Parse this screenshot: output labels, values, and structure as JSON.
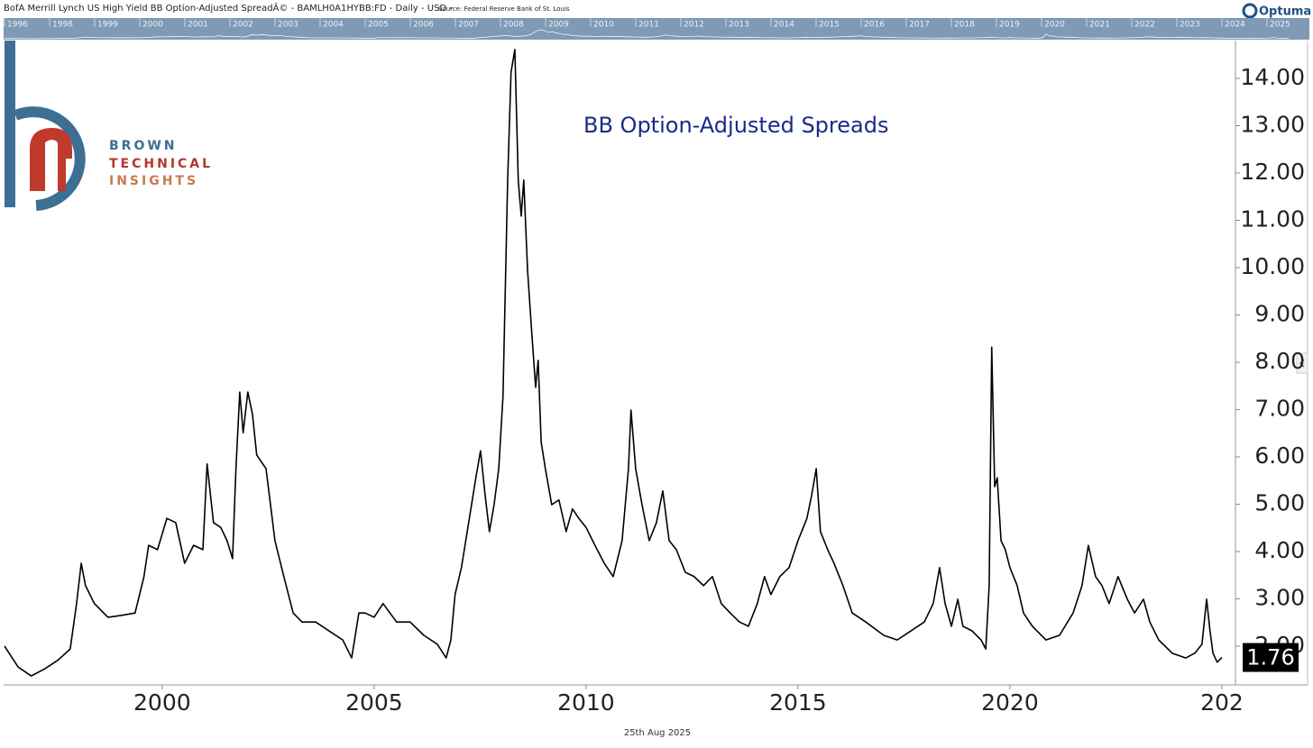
{
  "header": {
    "title": "BofA Merrill Lynch US High Yield BB Option-Adjusted SpreadÂ© - BAMLH0A1HYBB:FD - Daily - USD -",
    "source": "Source: Federal Reserve Bank of St. Louis",
    "brand": "Optuma"
  },
  "navigator": {
    "years": [
      "1996",
      "1998",
      "1999",
      "2000",
      "2001",
      "2002",
      "2003",
      "2004",
      "2005",
      "2006",
      "2007",
      "2008",
      "2009",
      "2010",
      "2011",
      "2012",
      "2013",
      "2014",
      "2015",
      "2016",
      "2017",
      "2018",
      "2019",
      "2020",
      "2021",
      "2022",
      "2023",
      "2024",
      "2025"
    ]
  },
  "logo": {
    "line1": "BROWN",
    "line2": "TECHNICAL",
    "line3": "INSIGHTS"
  },
  "footer": {
    "date": "25th Aug 2025"
  },
  "chart_data": {
    "type": "line",
    "annotation": "BB Option-Adjusted Spreads",
    "x": [
      1996.28,
      1996.6,
      1996.91,
      1997.23,
      1997.55,
      1997.83,
      1997.98,
      1998.09,
      1998.19,
      1998.4,
      1998.72,
      1999.04,
      1999.36,
      1999.57,
      1999.68,
      1999.89,
      2000.11,
      2000.32,
      2000.53,
      2000.74,
      2000.96,
      2001.06,
      2001.21,
      2001.38,
      2001.53,
      2001.66,
      2001.74,
      2001.83,
      2001.91,
      2002.02,
      2002.13,
      2002.23,
      2002.45,
      2002.66,
      2002.87,
      2003.09,
      2003.3,
      2003.62,
      2003.94,
      2004.26,
      2004.47,
      2004.64,
      2004.79,
      2005.0,
      2005.21,
      2005.53,
      2005.85,
      2006.17,
      2006.49,
      2006.7,
      2006.81,
      2006.91,
      2007.06,
      2007.23,
      2007.4,
      2007.51,
      2007.62,
      2007.72,
      2007.83,
      2007.94,
      2008.04,
      2008.15,
      2008.23,
      2008.32,
      2008.4,
      2008.47,
      2008.53,
      2008.62,
      2008.72,
      2008.81,
      2008.87,
      2008.94,
      2009.04,
      2009.19,
      2009.36,
      2009.53,
      2009.68,
      2009.83,
      2010.0,
      2010.21,
      2010.43,
      2010.64,
      2010.85,
      2011.0,
      2011.06,
      2011.17,
      2011.32,
      2011.49,
      2011.66,
      2011.81,
      2011.96,
      2012.13,
      2012.34,
      2012.55,
      2012.77,
      2012.98,
      2013.19,
      2013.4,
      2013.62,
      2013.83,
      2014.04,
      2014.21,
      2014.36,
      2014.57,
      2014.79,
      2015.0,
      2015.21,
      2015.32,
      2015.43,
      2015.53,
      2015.7,
      2015.85,
      2016.06,
      2016.28,
      2016.6,
      2017.02,
      2017.34,
      2017.66,
      2017.98,
      2018.19,
      2018.34,
      2018.47,
      2018.62,
      2018.77,
      2018.89,
      2019.11,
      2019.32,
      2019.43,
      2019.51,
      2019.57,
      2019.64,
      2019.7,
      2019.79,
      2019.89,
      2020.0,
      2020.17,
      2020.32,
      2020.53,
      2020.85,
      2021.17,
      2021.49,
      2021.7,
      2021.85,
      2022.02,
      2022.17,
      2022.34,
      2022.55,
      2022.77,
      2022.94,
      2023.15,
      2023.3,
      2023.51,
      2023.83,
      2024.15,
      2024.36,
      2024.53,
      2024.64,
      2024.72,
      2024.79,
      2024.89,
      2025.0
    ],
    "series": [
      {
        "name": "BAMLH0A1HYBB",
        "color": "#000000",
        "values": [
          2.0,
          1.56,
          1.37,
          1.52,
          1.71,
          1.94,
          2.9,
          3.75,
          3.28,
          2.9,
          2.61,
          2.65,
          2.7,
          3.47,
          4.13,
          4.04,
          4.7,
          4.61,
          3.75,
          4.13,
          4.04,
          5.85,
          4.61,
          4.51,
          4.23,
          3.85,
          5.75,
          7.37,
          6.51,
          7.37,
          6.9,
          6.04,
          5.75,
          4.23,
          3.47,
          2.7,
          2.51,
          2.51,
          2.32,
          2.13,
          1.75,
          2.7,
          2.7,
          2.61,
          2.9,
          2.51,
          2.51,
          2.23,
          2.04,
          1.75,
          2.13,
          3.09,
          3.66,
          4.61,
          5.56,
          6.13,
          5.18,
          4.42,
          4.99,
          5.75,
          7.28,
          11.85,
          14.13,
          14.61,
          11.85,
          11.09,
          11.85,
          9.94,
          8.61,
          7.47,
          8.04,
          6.32,
          5.75,
          4.99,
          5.09,
          4.42,
          4.9,
          4.7,
          4.51,
          4.13,
          3.75,
          3.47,
          4.23,
          5.75,
          6.99,
          5.75,
          4.99,
          4.23,
          4.61,
          5.28,
          4.23,
          4.04,
          3.56,
          3.47,
          3.28,
          3.47,
          2.9,
          2.7,
          2.51,
          2.42,
          2.9,
          3.47,
          3.09,
          3.47,
          3.66,
          4.23,
          4.7,
          5.18,
          5.75,
          4.42,
          4.04,
          3.75,
          3.28,
          2.7,
          2.51,
          2.23,
          2.13,
          2.32,
          2.51,
          2.9,
          3.66,
          2.9,
          2.42,
          2.99,
          2.42,
          2.32,
          2.13,
          1.94,
          3.28,
          8.32,
          5.37,
          5.56,
          4.23,
          4.04,
          3.66,
          3.28,
          2.7,
          2.42,
          2.13,
          2.23,
          2.7,
          3.28,
          4.13,
          3.47,
          3.28,
          2.9,
          3.47,
          2.99,
          2.7,
          2.99,
          2.51,
          2.13,
          1.85,
          1.75,
          1.85,
          2.04,
          2.99,
          2.32,
          1.85,
          1.66,
          1.76
        ]
      }
    ],
    "xlim": [
      1996.28,
      2025.32
    ],
    "xticks": [
      2000,
      2005,
      2010,
      2015,
      2020,
      {
        "value": 2025,
        "label": "202"
      }
    ],
    "ylim": [
      1.18,
      14.8
    ],
    "yticks": [
      {
        "value": 2,
        "label": "2.00"
      },
      {
        "value": 3,
        "label": "3.00"
      },
      {
        "value": 4,
        "label": "4.00"
      },
      {
        "value": 5,
        "label": "5.00"
      },
      {
        "value": 6,
        "label": "6.00"
      },
      {
        "value": 7,
        "label": "7.00"
      },
      {
        "value": 8,
        "label": "8.00"
      },
      {
        "value": 9,
        "label": "9.00"
      },
      {
        "value": 10,
        "label": "10.00"
      },
      {
        "value": 11,
        "label": "11.00"
      },
      {
        "value": 12,
        "label": "12.00"
      },
      {
        "value": 13,
        "label": "13.00"
      },
      {
        "value": 14,
        "label": "14.00"
      }
    ],
    "grid": false
  }
}
